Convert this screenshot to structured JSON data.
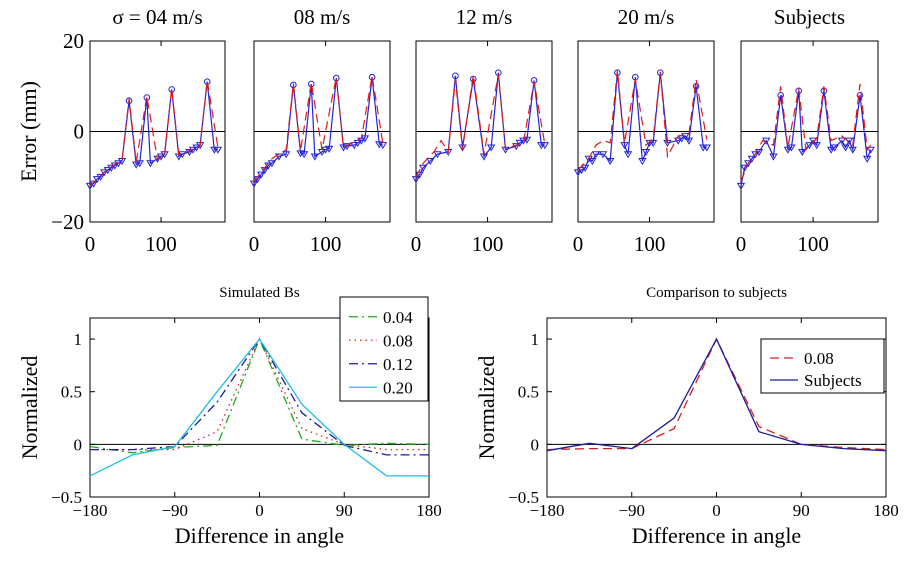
{
  "chart_data": [
    {
      "type": "line",
      "title": "σ = 04 m/s",
      "ylabel": "Error (mm)",
      "xlim": [
        0,
        190
      ],
      "ylim": [
        -20,
        20
      ],
      "xticks": [
        0,
        100
      ],
      "yticks": [
        20,
        0,
        -20
      ],
      "xtick_labels": [
        "0",
        "100"
      ],
      "ytick_labels": [
        "20",
        "0",
        "−20"
      ],
      "series": [
        {
          "color": "#2323d8",
          "style": "solid",
          "marker": "mixed",
          "x": [
            0,
            5,
            10,
            15,
            20,
            25,
            30,
            35,
            40,
            45,
            55,
            65,
            70,
            80,
            85,
            95,
            100,
            105,
            115,
            125,
            130,
            140,
            145,
            150,
            155,
            165,
            175,
            180
          ],
          "y": [
            -12,
            -11.5,
            -10.5,
            -10,
            -9,
            -8.5,
            -8,
            -7.5,
            -7,
            -6.5,
            6.8,
            -7.3,
            -7,
            7.5,
            -7,
            -6,
            -5.5,
            -5,
            9.3,
            -5.5,
            -5,
            -4.5,
            -4,
            -3.5,
            -3,
            11,
            -4,
            -4
          ]
        },
        {
          "color": "#e01a1a",
          "style": "dashed",
          "x": [
            0,
            10,
            20,
            30,
            45,
            55,
            65,
            80,
            95,
            105,
            115,
            125,
            140,
            155,
            165,
            180
          ],
          "y": [
            -12,
            -10.5,
            -9,
            -7.8,
            -6.3,
            7.3,
            -6.8,
            7.8,
            -6.2,
            -5.2,
            9.6,
            -5.2,
            -4.2,
            -3.2,
            11.3,
            -3.5
          ]
        }
      ]
    },
    {
      "type": "line",
      "title": "08 m/s",
      "xlim": [
        0,
        190
      ],
      "ylim": [
        -20,
        20
      ],
      "xticks": [
        0,
        100
      ],
      "xtick_labels": [
        "0",
        "100"
      ],
      "series": [
        {
          "color": "#2323d8",
          "style": "solid",
          "marker": "mixed",
          "x": [
            0,
            5,
            10,
            15,
            20,
            25,
            35,
            45,
            55,
            65,
            70,
            80,
            85,
            95,
            100,
            105,
            115,
            125,
            130,
            140,
            145,
            150,
            155,
            165,
            175,
            180
          ],
          "y": [
            -11.5,
            -10.5,
            -9.5,
            -8.5,
            -7.5,
            -7,
            -5.5,
            -5,
            10.3,
            -4.8,
            -5,
            10.5,
            -5.5,
            -4.5,
            -4,
            -3.8,
            11.8,
            -3.5,
            -3.2,
            -3,
            -2.5,
            -2,
            -1.5,
            12,
            -2.8,
            -3
          ]
        },
        {
          "color": "#e01a1a",
          "style": "dashed",
          "x": [
            0,
            10,
            25,
            45,
            55,
            65,
            80,
            95,
            115,
            125,
            150,
            165,
            180
          ],
          "y": [
            -11,
            -9,
            -6,
            -4,
            10.6,
            -4.2,
            10.8,
            -4,
            12,
            -3.5,
            -1.5,
            12.3,
            -2.5
          ]
        }
      ]
    },
    {
      "type": "line",
      "title": "12 m/s",
      "xlim": [
        0,
        190
      ],
      "ylim": [
        -20,
        20
      ],
      "xticks": [
        0,
        100
      ],
      "xtick_labels": [
        "0",
        "100"
      ],
      "series": [
        {
          "color": "#2323d8",
          "style": "solid",
          "marker": "mixed",
          "x": [
            0,
            5,
            10,
            20,
            30,
            45,
            55,
            65,
            80,
            95,
            105,
            115,
            125,
            140,
            145,
            150,
            155,
            165,
            175,
            180
          ],
          "y": [
            -10.5,
            -9.5,
            -8,
            -6.5,
            -5,
            -4.5,
            12.3,
            -3.5,
            11.6,
            -5.5,
            -3.5,
            13,
            -4,
            -3.2,
            -2.5,
            -2,
            -1.8,
            11.3,
            -3,
            -3
          ]
        },
        {
          "color": "#e01a1a",
          "style": "dashed",
          "x": [
            0,
            10,
            25,
            35,
            45,
            55,
            65,
            80,
            95,
            115,
            125,
            150,
            165,
            180
          ],
          "y": [
            -10,
            -7,
            -4.5,
            -2,
            -4.5,
            11.5,
            -4,
            12.5,
            -5,
            12.6,
            -3.8,
            -2.5,
            11,
            -2.8
          ]
        }
      ]
    },
    {
      "type": "line",
      "title": "20 m/s",
      "xlim": [
        0,
        190
      ],
      "ylim": [
        -20,
        20
      ],
      "xticks": [
        0,
        100
      ],
      "xtick_labels": [
        "0",
        "100"
      ],
      "series": [
        {
          "color": "#2323d8",
          "style": "solid",
          "marker": "mixed",
          "x": [
            0,
            5,
            10,
            15,
            20,
            25,
            35,
            45,
            55,
            65,
            70,
            80,
            90,
            95,
            100,
            105,
            115,
            125,
            140,
            145,
            150,
            155,
            165,
            175,
            180
          ],
          "y": [
            -9,
            -8.5,
            -8,
            -6,
            -6.5,
            -5,
            -5,
            -6.5,
            13,
            -3,
            -5,
            12,
            -6.5,
            -4.5,
            -2.5,
            -2.5,
            13,
            -2.5,
            -2,
            -1.5,
            -1,
            -2,
            10,
            -3.5,
            -3.5
          ]
        },
        {
          "color": "#e01a1a",
          "style": "dashed",
          "x": [
            0,
            15,
            25,
            35,
            45,
            55,
            65,
            80,
            95,
            105,
            115,
            125,
            140,
            155,
            165,
            180
          ],
          "y": [
            -8.5,
            -6,
            -3,
            -2,
            -2.5,
            13.5,
            -2.5,
            11.5,
            -3,
            -1.5,
            13.2,
            -5.5,
            -1,
            -0.5,
            11.5,
            -1.8
          ]
        }
      ]
    },
    {
      "type": "line",
      "title": "Subjects",
      "xlim": [
        0,
        190
      ],
      "ylim": [
        -20,
        20
      ],
      "xticks": [
        0,
        100
      ],
      "xtick_labels": [
        "0",
        "100"
      ],
      "series": [
        {
          "color": "#2323d8",
          "style": "solid",
          "marker": "mixed",
          "x": [
            0,
            5,
            10,
            15,
            20,
            25,
            35,
            45,
            55,
            65,
            70,
            80,
            85,
            95,
            100,
            105,
            115,
            125,
            130,
            140,
            145,
            150,
            155,
            165,
            175,
            180
          ],
          "y": [
            -12,
            -8,
            -7,
            -6,
            -5,
            -4.5,
            -2,
            -5.5,
            8,
            -4,
            -3.5,
            9,
            -4.5,
            -3,
            -2,
            -3,
            9,
            -4,
            -3.5,
            -2,
            -3.5,
            -2,
            -4,
            8,
            -6,
            -4
          ]
        },
        {
          "color": "#e01a1a",
          "style": "dashed",
          "x": [
            0,
            10,
            20,
            30,
            45,
            55,
            65,
            80,
            90,
            105,
            115,
            125,
            140,
            155,
            165,
            175,
            180
          ],
          "y": [
            -11,
            -7,
            -5,
            -2,
            -3,
            10,
            -3.5,
            9.5,
            -4,
            -1.5,
            10,
            -2,
            -1,
            -3,
            10.5,
            -4,
            -3
          ]
        }
      ]
    },
    {
      "type": "line",
      "title": "Simulated Bs",
      "xlabel": "Difference in angle",
      "ylabel": "Normalized",
      "xlim": [
        -180,
        180
      ],
      "ylim": [
        -0.5,
        1.2
      ],
      "xticks": [
        -180,
        -90,
        0,
        90,
        180
      ],
      "xtick_labels": [
        "−180",
        "−90",
        "0",
        "90",
        "180"
      ],
      "yticks": [
        1,
        0.5,
        0,
        -0.5
      ],
      "ytick_labels": [
        "1",
        "0.5",
        "0",
        "−0.5"
      ],
      "legend": "top-right",
      "series": [
        {
          "name": "0.04",
          "color": "#1faa1f",
          "style": "dashdot",
          "x": [
            -180,
            -135,
            -90,
            -45,
            0,
            45,
            90,
            135,
            180
          ],
          "y": [
            -0.02,
            -0.08,
            -0.03,
            -0.01,
            1.0,
            0.05,
            -0.01,
            0.01,
            0.0
          ]
        },
        {
          "name": "0.08",
          "color": "#d42020",
          "style": "dotted",
          "x": [
            -180,
            -135,
            -90,
            -45,
            0,
            45,
            90,
            135,
            180
          ],
          "y": [
            -0.05,
            -0.05,
            -0.05,
            0.12,
            1.0,
            0.15,
            0.0,
            -0.05,
            -0.05
          ]
        },
        {
          "name": "0.12",
          "color": "#1a1aa0",
          "style": "dashdot",
          "x": [
            -180,
            -135,
            -90,
            -45,
            0,
            45,
            90,
            135,
            180
          ],
          "y": [
            -0.05,
            -0.05,
            -0.02,
            0.4,
            1.0,
            0.3,
            -0.01,
            -0.1,
            -0.1
          ]
        },
        {
          "name": "0.20",
          "color": "#20bde0",
          "style": "solid",
          "x": [
            -180,
            -135,
            -90,
            -45,
            0,
            45,
            90,
            135,
            180
          ],
          "y": [
            -0.3,
            -0.1,
            -0.02,
            0.5,
            1.0,
            0.38,
            0.0,
            -0.3,
            -0.3
          ]
        }
      ]
    },
    {
      "type": "line",
      "title": "Comparison to subjects",
      "xlabel": "Difference in angle",
      "ylabel": "Normalized",
      "xlim": [
        -180,
        180
      ],
      "ylim": [
        -0.5,
        1.2
      ],
      "xticks": [
        -180,
        -90,
        0,
        90,
        180
      ],
      "xtick_labels": [
        "−180",
        "−90",
        "0",
        "90",
        "180"
      ],
      "yticks": [
        1,
        0.5,
        0,
        -0.5
      ],
      "ytick_labels": [
        "1",
        "0.5",
        "0",
        "−0.5"
      ],
      "legend": "top-right",
      "series": [
        {
          "name": "0.08",
          "color": "#d42020",
          "style": "dashed",
          "x": [
            -180,
            -135,
            -90,
            -45,
            0,
            45,
            90,
            135,
            180
          ],
          "y": [
            -0.05,
            -0.04,
            -0.04,
            0.15,
            1.0,
            0.17,
            0.0,
            -0.03,
            -0.05
          ]
        },
        {
          "name": "Subjects",
          "color": "#1a1aa0",
          "style": "solid",
          "x": [
            -180,
            -135,
            -90,
            -45,
            0,
            45,
            90,
            135,
            180
          ],
          "y": [
            -0.06,
            0.01,
            -0.04,
            0.25,
            1.0,
            0.12,
            0.0,
            -0.04,
            -0.06
          ]
        }
      ]
    }
  ]
}
